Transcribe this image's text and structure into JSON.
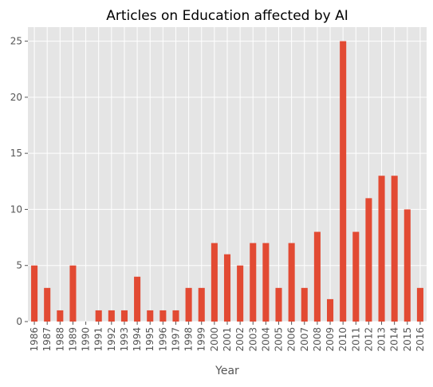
{
  "chart_data": {
    "type": "bar",
    "title": "Articles on Education affected by AI",
    "xlabel": "Year",
    "ylabel": "",
    "categories": [
      "1986",
      "1987",
      "1988",
      "1989",
      "1990",
      "1991",
      "1992",
      "1993",
      "1994",
      "1995",
      "1996",
      "1997",
      "1998",
      "1999",
      "2000",
      "2001",
      "2002",
      "2003",
      "2004",
      "2005",
      "2006",
      "2007",
      "2008",
      "2009",
      "2010",
      "2011",
      "2012",
      "2013",
      "2014",
      "2015",
      "2016"
    ],
    "values": [
      5,
      3,
      1,
      5,
      0,
      1,
      1,
      1,
      4,
      1,
      1,
      1,
      3,
      3,
      7,
      6,
      5,
      7,
      7,
      3,
      7,
      3,
      8,
      2,
      25,
      8,
      11,
      13,
      13,
      10,
      3
    ],
    "ylim": [
      0,
      26.25
    ],
    "yticks": [
      0,
      5,
      10,
      15,
      20,
      25
    ],
    "grid": true,
    "bar_color": "#E24A33",
    "background_color": "#E5E5E5",
    "grid_color": "#FFFFFF"
  }
}
